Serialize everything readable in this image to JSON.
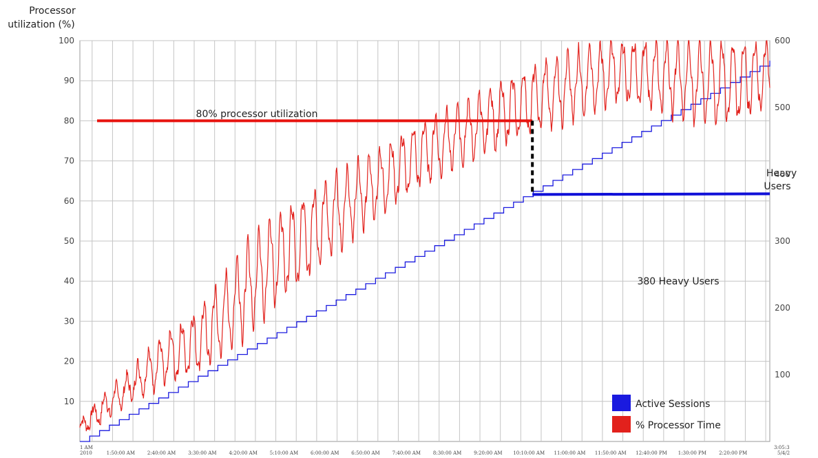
{
  "chart_data": {
    "type": "line",
    "y_left_title": [
      "Processor",
      "utilization (%)"
    ],
    "y_right_title": [
      "Heavy",
      "Users"
    ],
    "y_left_range": [
      0,
      100
    ],
    "y_left_ticks": [
      "100",
      "90",
      "80",
      "70",
      "60",
      "50",
      "40",
      "30",
      "20",
      "10"
    ],
    "y_right_range": [
      0,
      600
    ],
    "y_right_ticks": [
      "600",
      "500",
      "400",
      "300",
      "200",
      "100"
    ],
    "x_ticks": [
      "1:50:00 AM",
      "2:40:00 AM",
      "3:30:00 AM",
      "4:20:00 AM",
      "5:10:00 AM",
      "6:00:00 AM",
      "6:50:00 AM",
      "7:40:00 AM",
      "8:30:00 AM",
      "9:20:00 AM",
      "10:10:00 AM",
      "11:00:00 AM",
      "11:50:00 AM",
      "12:40:00 PM",
      "1:30:00 PM",
      "2:20:00 PM"
    ],
    "x_start_label": [
      "1 AM",
      "2010"
    ],
    "x_end_label": [
      "3:05:3",
      "5/4/2"
    ],
    "grid": true,
    "legend_position": "bottom-right",
    "series": [
      {
        "name": "% Processor Time",
        "color": "#e2211c",
        "axis": "left",
        "x": [
          "1:00 AM",
          "1:30 AM",
          "2:00 AM",
          "2:30 AM",
          "3:00 AM",
          "3:30 AM",
          "4:00 AM",
          "4:30 AM",
          "5:00 AM",
          "5:30 AM",
          "6:00 AM",
          "6:30 AM",
          "7:00 AM",
          "7:30 AM",
          "8:00 AM",
          "8:30 AM",
          "9:00 AM",
          "9:30 AM",
          "10:00 AM",
          "10:30 AM",
          "11:00 AM",
          "11:30 AM",
          "12:00 PM",
          "12:30 PM",
          "1:00 PM",
          "1:30 PM",
          "2:00 PM",
          "2:30 PM",
          "3:05 PM"
        ],
        "values_peak": [
          5,
          12,
          17,
          24,
          29,
          34,
          42,
          51,
          57,
          61,
          65,
          69,
          72,
          76,
          80,
          83,
          86,
          89,
          92,
          95,
          97,
          99,
          100,
          100,
          100,
          100,
          100,
          100,
          100
        ],
        "values_trough": [
          2,
          5,
          10,
          13,
          15,
          18,
          22,
          28,
          34,
          39,
          45,
          50,
          55,
          60,
          64,
          67,
          70,
          73,
          76,
          78,
          80,
          82,
          85,
          84,
          82,
          80,
          79,
          80,
          84
        ]
      },
      {
        "name": "Active Sessions",
        "color": "#1a1adf",
        "axis": "right",
        "x_start": "1:00 AM",
        "x_end": "3:05 PM",
        "values": [
          0,
          570
        ]
      }
    ],
    "annotations": [
      {
        "text": "80% processor utilization",
        "value": 80,
        "color": "#e8130f"
      },
      {
        "text": "380 Heavy Users",
        "value": 380,
        "color": "#1010d8"
      }
    ],
    "marker_time": "10:10 AM"
  }
}
